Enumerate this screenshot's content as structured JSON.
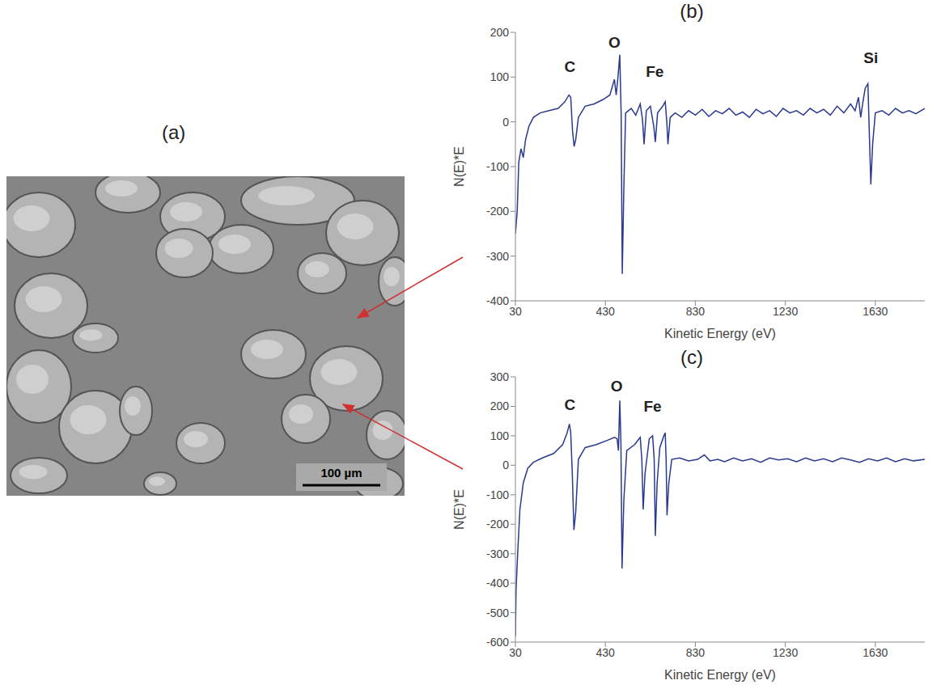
{
  "image_panel": {
    "label": "(a)",
    "scale_bar": "100 µm"
  },
  "chart_data": [
    {
      "type": "line",
      "title": "(b)",
      "xlabel": "Kinetic Energy (eV)",
      "ylabel": "N(E)*E",
      "color": "#2b3990",
      "xlim": [
        30,
        1850
      ],
      "xticks": [
        30,
        430,
        830,
        1230,
        1630
      ],
      "ylim": [
        -400,
        200
      ],
      "yticks": [
        -400,
        -300,
        -200,
        -100,
        0,
        100,
        200
      ],
      "annotations": [
        {
          "text": "C",
          "x": 272,
          "y": 120
        },
        {
          "text": "O",
          "x": 470,
          "y": 175
        },
        {
          "text": "Fe",
          "x": 650,
          "y": 110
        },
        {
          "text": "Si",
          "x": 1610,
          "y": 140
        }
      ],
      "x": [
        30,
        38,
        45,
        55,
        65,
        75,
        90,
        110,
        140,
        180,
        220,
        250,
        268,
        276,
        284,
        291,
        298,
        310,
        340,
        380,
        420,
        450,
        470,
        478,
        486,
        494,
        500,
        505,
        512,
        520,
        545,
        565,
        585,
        595,
        602,
        612,
        630,
        645,
        652,
        662,
        685,
        696,
        703,
        708,
        718,
        740,
        770,
        800,
        830,
        860,
        890,
        920,
        950,
        980,
        1010,
        1040,
        1070,
        1100,
        1130,
        1160,
        1190,
        1220,
        1250,
        1280,
        1310,
        1340,
        1370,
        1400,
        1430,
        1460,
        1490,
        1520,
        1540,
        1555,
        1565,
        1575,
        1585,
        1597,
        1603,
        1610,
        1618,
        1630,
        1660,
        1690,
        1720,
        1750,
        1780,
        1810,
        1850
      ],
      "values": [
        -250,
        -200,
        -90,
        -60,
        -80,
        -40,
        -10,
        10,
        20,
        25,
        30,
        45,
        60,
        55,
        -20,
        -55,
        -40,
        10,
        35,
        40,
        50,
        60,
        95,
        60,
        100,
        150,
        20,
        -340,
        -150,
        20,
        30,
        15,
        40,
        5,
        -50,
        25,
        35,
        -10,
        -45,
        20,
        35,
        45,
        0,
        -50,
        10,
        20,
        10,
        25,
        15,
        28,
        12,
        25,
        18,
        30,
        15,
        22,
        10,
        28,
        18,
        25,
        12,
        30,
        20,
        25,
        15,
        30,
        20,
        28,
        15,
        35,
        20,
        40,
        25,
        55,
        10,
        45,
        75,
        85,
        -20,
        -140,
        -50,
        20,
        25,
        15,
        30,
        20,
        25,
        18,
        30
      ]
    },
    {
      "type": "line",
      "title": "(c)",
      "xlabel": "Kinetic Energy (eV)",
      "ylabel": "N(E)*E",
      "color": "#2b3990",
      "xlim": [
        30,
        1850
      ],
      "xticks": [
        30,
        430,
        830,
        1230,
        1630
      ],
      "ylim": [
        -600,
        300
      ],
      "yticks": [
        -600,
        -500,
        -400,
        -300,
        -200,
        -100,
        0,
        100,
        200,
        300
      ],
      "annotations": [
        {
          "text": "C",
          "x": 272,
          "y": 200
        },
        {
          "text": "O",
          "x": 480,
          "y": 265
        },
        {
          "text": "Fe",
          "x": 640,
          "y": 195
        }
      ],
      "x": [
        30,
        33,
        40,
        50,
        65,
        85,
        110,
        150,
        200,
        240,
        260,
        270,
        276,
        283,
        290,
        298,
        310,
        340,
        390,
        440,
        470,
        482,
        488,
        494,
        499,
        504,
        512,
        525,
        560,
        585,
        592,
        598,
        606,
        625,
        640,
        647,
        652,
        660,
        672,
        690,
        696,
        700,
        704,
        712,
        725,
        760,
        800,
        840,
        870,
        895,
        930,
        960,
        1000,
        1040,
        1080,
        1120,
        1160,
        1200,
        1240,
        1280,
        1320,
        1360,
        1400,
        1440,
        1480,
        1520,
        1560,
        1600,
        1640,
        1680,
        1720,
        1760,
        1800,
        1850
      ],
      "values": [
        -580,
        -420,
        -300,
        -150,
        -60,
        -10,
        10,
        25,
        40,
        70,
        110,
        140,
        110,
        -30,
        -220,
        -160,
        20,
        60,
        70,
        85,
        95,
        90,
        50,
        220,
        80,
        -350,
        -120,
        50,
        70,
        95,
        20,
        -150,
        -30,
        90,
        100,
        20,
        -240,
        -60,
        60,
        100,
        110,
        20,
        -170,
        -60,
        20,
        25,
        15,
        20,
        35,
        15,
        20,
        12,
        25,
        15,
        22,
        10,
        25,
        18,
        22,
        12,
        25,
        15,
        22,
        12,
        25,
        18,
        10,
        22,
        15,
        25,
        12,
        22,
        15,
        20
      ]
    }
  ]
}
